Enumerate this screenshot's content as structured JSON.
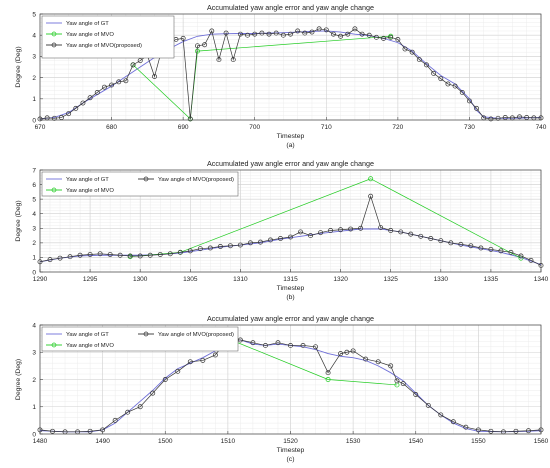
{
  "chart_data": [
    {
      "type": "line",
      "title": "Accumulated yaw angle error and yaw angle change",
      "xlabel": "Timestep",
      "ylabel": "Degree (Deg)",
      "caption": "(a)",
      "xlim": [
        670,
        740
      ],
      "ylim": [
        0,
        5
      ],
      "xticks": [
        670,
        680,
        690,
        700,
        710,
        720,
        730,
        740
      ],
      "yticks": [
        0,
        1,
        2,
        3,
        4,
        5
      ],
      "grid": true,
      "legend_position": "top-left",
      "legend_layout": "column",
      "series": [
        {
          "name": "Yaw angle of GT",
          "color": "#6f6fd8",
          "marker": "none",
          "x": [
            670,
            672,
            674,
            676,
            678,
            680,
            682,
            684,
            686,
            688,
            690,
            692,
            694,
            696,
            698,
            700,
            702,
            704,
            706,
            708,
            710,
            712,
            714,
            716,
            718,
            720,
            722,
            724,
            726,
            728,
            730,
            731,
            732,
            734,
            736,
            738,
            740
          ],
          "values": [
            0.05,
            0.12,
            0.35,
            0.8,
            1.2,
            1.6,
            2.05,
            2.5,
            2.95,
            3.35,
            3.7,
            3.95,
            4.05,
            4.07,
            4.08,
            4.08,
            4.1,
            4.12,
            4.15,
            4.18,
            4.2,
            4.15,
            4.05,
            3.98,
            3.85,
            3.65,
            3.25,
            2.65,
            2.1,
            1.7,
            1.0,
            0.45,
            0.15,
            0.08,
            0.08,
            0.1,
            0.12
          ]
        },
        {
          "name": "Yaw angle of MVO",
          "color": "#22cc22",
          "marker": "circle",
          "x": [
            683,
            691,
            692,
            719
          ],
          "values": [
            2.6,
            0.05,
            3.25,
            3.95
          ]
        },
        {
          "name": "Yaw angle of MVO(proposed)",
          "color": "#333333",
          "marker": "circle",
          "x": [
            670,
            671,
            672,
            673,
            674,
            675,
            676,
            677,
            678,
            679,
            680,
            681,
            682,
            683,
            684,
            685,
            686,
            687,
            688,
            689,
            690,
            691,
            692,
            693,
            694,
            695,
            696,
            697,
            698,
            699,
            700,
            701,
            702,
            703,
            704,
            705,
            706,
            707,
            708,
            709,
            710,
            711,
            712,
            713,
            714,
            715,
            716,
            717,
            718,
            719,
            720,
            721,
            722,
            723,
            724,
            725,
            726,
            727,
            728,
            729,
            730,
            731,
            732,
            733,
            734,
            735,
            736,
            737,
            738,
            739,
            740
          ],
          "values": [
            0.05,
            0.1,
            0.08,
            0.12,
            0.3,
            0.55,
            0.8,
            1.05,
            1.3,
            1.55,
            1.65,
            1.8,
            1.85,
            2.6,
            2.8,
            3.05,
            2.05,
            3.3,
            3.6,
            3.8,
            3.85,
            0.05,
            3.5,
            3.55,
            4.2,
            2.85,
            4.1,
            2.85,
            4.05,
            4.0,
            4.05,
            4.1,
            4.05,
            4.1,
            4.0,
            4.05,
            4.2,
            4.1,
            4.15,
            4.3,
            4.25,
            4.05,
            3.95,
            4.05,
            4.3,
            4.05,
            4.0,
            3.9,
            3.85,
            3.9,
            3.8,
            3.35,
            3.2,
            2.85,
            2.6,
            2.2,
            1.95,
            1.7,
            1.6,
            1.3,
            0.9,
            0.55,
            0.1,
            0.05,
            0.08,
            0.12,
            0.1,
            0.15,
            0.12,
            0.1,
            0.1
          ]
        }
      ]
    },
    {
      "type": "line",
      "title": "Accumulated yaw angle error and yaw angle change",
      "xlabel": "Timestep",
      "ylabel": "Degree (Deg)",
      "caption": "(b)",
      "xlim": [
        1290,
        1340
      ],
      "ylim": [
        0,
        7
      ],
      "xticks": [
        1290,
        1295,
        1300,
        1305,
        1310,
        1315,
        1320,
        1325,
        1330,
        1335,
        1340
      ],
      "yticks": [
        0,
        1,
        2,
        3,
        4,
        5,
        6,
        7
      ],
      "grid": true,
      "legend_position": "top-left",
      "legend_layout": "two-column",
      "series": [
        {
          "name": "Yaw angle of GT",
          "color": "#6f6fd8",
          "marker": "none",
          "x": [
            1290,
            1292,
            1294,
            1296,
            1298,
            1300,
            1302,
            1304,
            1306,
            1308,
            1310,
            1312,
            1314,
            1316,
            1318,
            1320,
            1322,
            1324,
            1326,
            1328,
            1330,
            1332,
            1334,
            1336,
            1338,
            1340
          ],
          "values": [
            0.7,
            0.95,
            1.1,
            1.15,
            1.15,
            1.15,
            1.2,
            1.3,
            1.5,
            1.7,
            1.85,
            2.0,
            2.25,
            2.45,
            2.65,
            2.8,
            2.95,
            2.95,
            2.75,
            2.45,
            2.15,
            1.85,
            1.6,
            1.35,
            1.0,
            0.5
          ]
        },
        {
          "name": "Yaw angle of MVO",
          "color": "#22cc22",
          "marker": "circle",
          "x": [
            1299,
            1304,
            1323,
            1338
          ],
          "values": [
            1.05,
            1.35,
            6.4,
            0.95
          ]
        },
        {
          "name": "Yaw angle of MVO(proposed)",
          "color": "#333333",
          "marker": "circle",
          "x": [
            1290,
            1291,
            1292,
            1293,
            1294,
            1295,
            1296,
            1297,
            1298,
            1299,
            1300,
            1301,
            1302,
            1303,
            1304,
            1305,
            1306,
            1307,
            1308,
            1309,
            1310,
            1311,
            1312,
            1313,
            1314,
            1315,
            1316,
            1317,
            1318,
            1319,
            1320,
            1321,
            1322,
            1323,
            1324,
            1325,
            1326,
            1327,
            1328,
            1329,
            1330,
            1331,
            1332,
            1333,
            1334,
            1335,
            1336,
            1337,
            1338,
            1339,
            1340
          ],
          "values": [
            0.7,
            0.85,
            0.95,
            1.05,
            1.15,
            1.2,
            1.25,
            1.2,
            1.15,
            1.1,
            1.1,
            1.15,
            1.2,
            1.25,
            1.35,
            1.45,
            1.6,
            1.65,
            1.75,
            1.8,
            1.85,
            2.0,
            2.05,
            2.2,
            2.3,
            2.4,
            2.75,
            2.5,
            2.7,
            2.85,
            2.9,
            2.95,
            3.0,
            5.2,
            3.05,
            2.85,
            2.75,
            2.6,
            2.45,
            2.3,
            2.15,
            2.0,
            1.9,
            1.8,
            1.65,
            1.55,
            1.45,
            1.35,
            1.1,
            0.8,
            0.45
          ]
        }
      ]
    },
    {
      "type": "line",
      "title": "Accumulated yaw angle error and yaw angle change",
      "xlabel": "Timestep",
      "ylabel": "Degree (Deg)",
      "caption": "(c)",
      "xlim": [
        1480,
        1560
      ],
      "ylim": [
        0,
        4
      ],
      "xticks": [
        1480,
        1490,
        1500,
        1510,
        1520,
        1530,
        1540,
        1550,
        1560
      ],
      "yticks": [
        0,
        1,
        2,
        3,
        4
      ],
      "grid": true,
      "legend_position": "top-left",
      "legend_layout": "two-column",
      "series": [
        {
          "name": "Yaw angle of GT",
          "color": "#6f6fd8",
          "marker": "none",
          "x": [
            1480,
            1484,
            1488,
            1490,
            1492,
            1494,
            1496,
            1498,
            1500,
            1502,
            1504,
            1506,
            1508,
            1510,
            1512,
            1514,
            1516,
            1518,
            1520,
            1522,
            1524,
            1526,
            1528,
            1530,
            1532,
            1534,
            1536,
            1538,
            1540,
            1542,
            1544,
            1546,
            1548,
            1550,
            1554,
            1558,
            1560
          ],
          "values": [
            0.12,
            0.08,
            0.08,
            0.15,
            0.4,
            0.8,
            1.2,
            1.6,
            2.05,
            2.4,
            2.6,
            2.8,
            3.05,
            3.4,
            3.45,
            3.3,
            3.25,
            3.3,
            3.25,
            3.2,
            3.1,
            2.95,
            2.85,
            2.8,
            2.7,
            2.5,
            2.25,
            1.95,
            1.5,
            1.05,
            0.7,
            0.4,
            0.2,
            0.1,
            0.08,
            0.1,
            0.12
          ]
        },
        {
          "name": "Yaw angle of MVO",
          "color": "#22cc22",
          "marker": "circle",
          "x": [
            1510,
            1526,
            1537
          ],
          "values": [
            3.5,
            2.0,
            1.8
          ]
        },
        {
          "name": "Yaw angle of MVO(proposed)",
          "color": "#333333",
          "marker": "circle",
          "x": [
            1480,
            1482,
            1484,
            1486,
            1488,
            1490,
            1492,
            1494,
            1496,
            1498,
            1500,
            1502,
            1504,
            1506,
            1508,
            1510,
            1512,
            1514,
            1516,
            1518,
            1520,
            1522,
            1524,
            1526,
            1528,
            1529,
            1530,
            1532,
            1534,
            1536,
            1537,
            1538,
            1540,
            1542,
            1544,
            1546,
            1548,
            1550,
            1552,
            1554,
            1556,
            1558,
            1560
          ],
          "values": [
            0.15,
            0.1,
            0.08,
            0.08,
            0.1,
            0.15,
            0.5,
            0.8,
            1.0,
            1.5,
            2.0,
            2.3,
            2.65,
            2.7,
            2.9,
            3.5,
            3.45,
            3.35,
            3.25,
            3.35,
            3.25,
            3.25,
            3.2,
            2.25,
            2.95,
            3.0,
            3.05,
            2.75,
            2.65,
            2.5,
            1.95,
            1.85,
            1.45,
            1.05,
            0.7,
            0.45,
            0.25,
            0.15,
            0.1,
            0.08,
            0.1,
            0.12,
            0.15
          ]
        }
      ]
    }
  ]
}
